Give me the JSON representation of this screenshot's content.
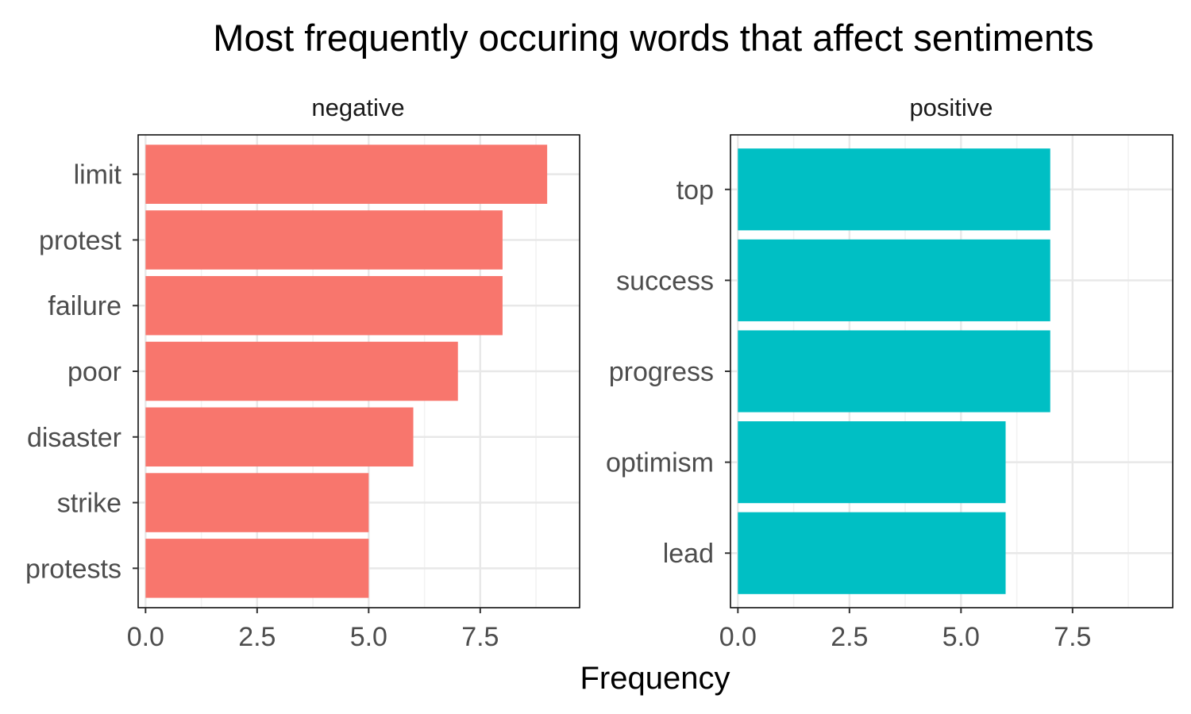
{
  "chart_data": {
    "type": "bar",
    "orientation": "horizontal",
    "title": "Most frequently occuring words that affect sentiments",
    "xlabel": "Frequency",
    "ylabel": "",
    "xlim": [
      0,
      9
    ],
    "x_ticks": [
      "0.0",
      "2.5",
      "5.0",
      "7.5"
    ],
    "grid": true,
    "legend": "none",
    "panels": [
      {
        "name": "negative",
        "color": "#F8766D",
        "categories": [
          "limit",
          "protest",
          "failure",
          "poor",
          "disaster",
          "strike",
          "protests"
        ],
        "values": [
          9,
          8,
          8,
          7,
          6,
          5,
          5
        ]
      },
      {
        "name": "positive",
        "color": "#00BFC4",
        "categories": [
          "top",
          "success",
          "progress",
          "optimism",
          "lead"
        ],
        "values": [
          7,
          7,
          7,
          6,
          6
        ]
      }
    ]
  }
}
